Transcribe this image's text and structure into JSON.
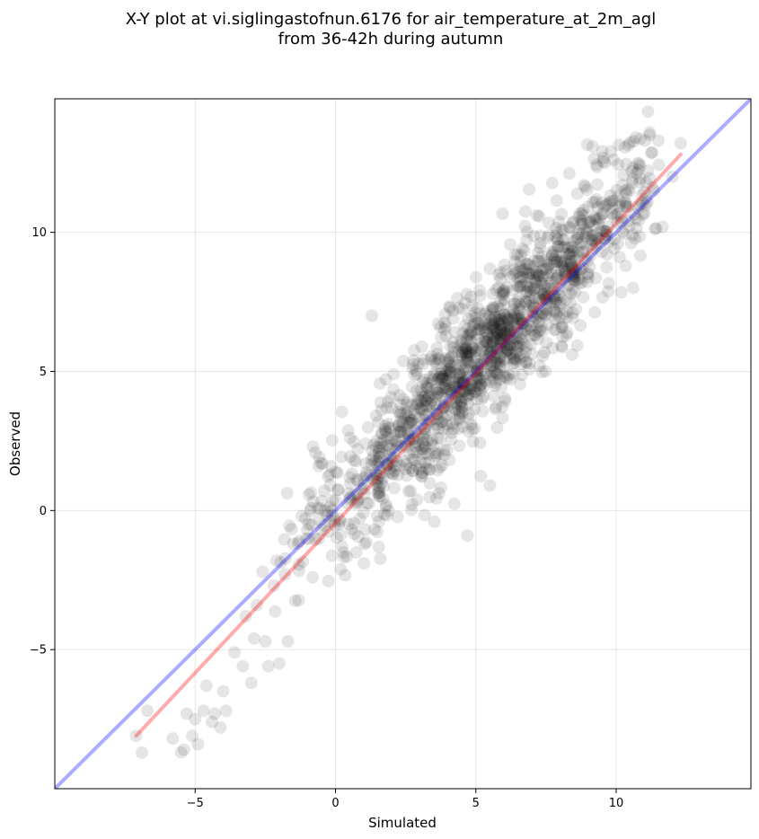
{
  "chart_data": {
    "type": "scatter",
    "title_line1": "X-Y plot at vi.siglingastofnun.6176 for air_temperature_at_2m_agl",
    "title_line2": "from 36-42h during autumn",
    "xlabel": "Simulated",
    "ylabel": "Observed",
    "xlim": [
      -10,
      14.8
    ],
    "ylim": [
      -10,
      14.8
    ],
    "x_ticks": [
      -5,
      0,
      5,
      10
    ],
    "y_ticks": [
      -5,
      0,
      5,
      10
    ],
    "x_tick_labels": [
      "−5",
      "0",
      "5",
      "10"
    ],
    "y_tick_labels": [
      "−5",
      "0",
      "5",
      "10"
    ],
    "grid": true,
    "point_color": "#000000",
    "point_opacity": 0.1,
    "identity_line": {
      "color": "#0000ff",
      "opacity": 0.33,
      "from": [
        -10,
        -10
      ],
      "to": [
        14.8,
        14.8
      ]
    },
    "regression_line": {
      "color": "#ff0000",
      "opacity": 0.33,
      "from": [
        -7.1,
        -8.1
      ],
      "to": [
        12.3,
        12.8
      ]
    },
    "point_cloud": {
      "count": 1400,
      "x_range": [
        -7.2,
        12.4
      ],
      "center_x": 5.5,
      "spread_x": 3.1,
      "slope": 1.07,
      "intercept": 0.0,
      "residual_sd": 1.25
    },
    "series": [
      {
        "x": [
          -7.1,
          -6.9,
          -6.7,
          -5.8,
          -5.5,
          -5.4,
          -5.3,
          -5.1,
          -5.0,
          -4.9,
          -4.7,
          -4.6,
          -4.4,
          -4.3,
          -4.1,
          -4.0,
          -3.9,
          -3.6,
          -3.3,
          -3.2,
          -3.0,
          -2.9,
          -2.8,
          -2.6,
          -2.5,
          -2.4,
          -2.2,
          -2.1,
          -2.0,
          -1.8,
          -1.7,
          -1.5,
          -1.3,
          -1.2,
          -1.0,
          -0.8,
          -0.6,
          -0.4,
          -0.2,
          1.3,
          4.7,
          5.5,
          9.6,
          9.8,
          10.6,
          11.2,
          11.5,
          12.0,
          12.3
        ],
        "y": [
          -8.1,
          -8.7,
          -7.2,
          -8.2,
          -8.7,
          -8.6,
          -7.3,
          -8.1,
          -7.5,
          -8.4,
          -7.2,
          -6.3,
          -7.6,
          -7.3,
          -7.8,
          -6.5,
          -7.2,
          -5.1,
          -5.6,
          -3.8,
          -6.2,
          -4.6,
          -3.4,
          -2.2,
          -4.7,
          -5.6,
          -2.7,
          -1.8,
          -5.5,
          -2.3,
          -4.7,
          -1.2,
          -1.1,
          -0.2,
          -0.7,
          2.3,
          1.6,
          0.7,
          1.3,
          7.0,
          -0.9,
          0.9,
          12.5,
          12.9,
          8.0,
          13.5,
          13.3,
          12.0,
          13.2
        ]
      }
    ]
  }
}
